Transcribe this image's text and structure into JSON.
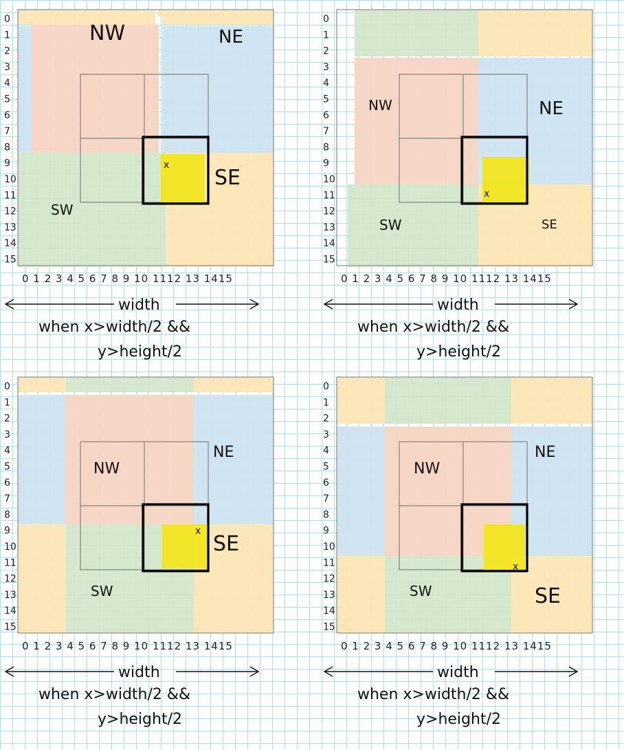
{
  "rows": [
    "0",
    "1",
    "2",
    "3",
    "4",
    "5",
    "6",
    "7",
    "8",
    "9",
    "10",
    "11",
    "12",
    "13",
    "14",
    "15"
  ],
  "cols": "0 1 2 3 4 5 6 7 8 9 10 1112 13 1415",
  "width_label": "width",
  "condition_line1": "when x>width/2 &&",
  "condition_line2": "y>height/2",
  "colors": {
    "nw": "#f6d5c3",
    "ne": "#cfe3f1",
    "sw": "#d3e6c9",
    "se": "#fbe6b5",
    "highlight": "#f2e51a",
    "frame": "#8c8c8c",
    "bold": "#000000"
  },
  "panels": [
    {
      "labels": {
        "nw": "NW",
        "ne": "NE",
        "sw": "SW",
        "se": "SE"
      },
      "marker": "x"
    },
    {
      "labels": {
        "nw": "NW",
        "ne": "NE",
        "sw": "SW",
        "se": "SE"
      },
      "marker": "x"
    },
    {
      "labels": {
        "nw": "NW",
        "ne": "NE",
        "sw": "SW",
        "se": "SE"
      },
      "marker": "x"
    },
    {
      "labels": {
        "nw": "NW",
        "ne": "NE",
        "sw": "SW",
        "se": "SE"
      },
      "marker": "x"
    }
  ]
}
